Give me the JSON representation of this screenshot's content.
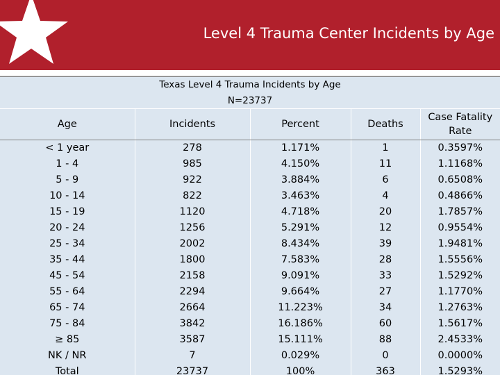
{
  "slide": {
    "title": "Level 4 Trauma Center Incidents by Age"
  },
  "table": {
    "title": "Texas Level 4 Trauma Incidents by Age",
    "subtitle": "N=23737",
    "columns": [
      "Age",
      "Incidents",
      "Percent",
      "Deaths",
      "Case Fatality Rate"
    ],
    "rows": [
      [
        "< 1 year",
        "278",
        "1.171%",
        "1",
        "0.3597%"
      ],
      [
        "1 - 4",
        "985",
        "4.150%",
        "11",
        "1.1168%"
      ],
      [
        "5 - 9",
        "922",
        "3.884%",
        "6",
        "0.6508%"
      ],
      [
        "10 - 14",
        "822",
        "3.463%",
        "4",
        "0.4866%"
      ],
      [
        "15 - 19",
        "1120",
        "4.718%",
        "20",
        "1.7857%"
      ],
      [
        "20 - 24",
        "1256",
        "5.291%",
        "12",
        "0.9554%"
      ],
      [
        "25 - 34",
        "2002",
        "8.434%",
        "39",
        "1.9481%"
      ],
      [
        "35 - 44",
        "1800",
        "7.583%",
        "28",
        "1.5556%"
      ],
      [
        "45 - 54",
        "2158",
        "9.091%",
        "33",
        "1.5292%"
      ],
      [
        "55 - 64",
        "2294",
        "9.664%",
        "27",
        "1.1770%"
      ],
      [
        "65 - 74",
        "2664",
        "11.223%",
        "34",
        "1.2763%"
      ],
      [
        "75 - 84",
        "3842",
        "16.186%",
        "60",
        "1.5617%"
      ],
      [
        "≥ 85",
        "3587",
        "15.111%",
        "88",
        "2.4533%"
      ],
      [
        "NK / NR",
        "7",
        "0.029%",
        "0",
        "0.0000%"
      ],
      [
        "Total",
        "23737",
        "100%",
        "363",
        "1.5293%"
      ]
    ]
  },
  "colors": {
    "banner": "#b1202c",
    "table_fill": "#dce6f0"
  },
  "icons": {
    "logo": "star-icon"
  }
}
